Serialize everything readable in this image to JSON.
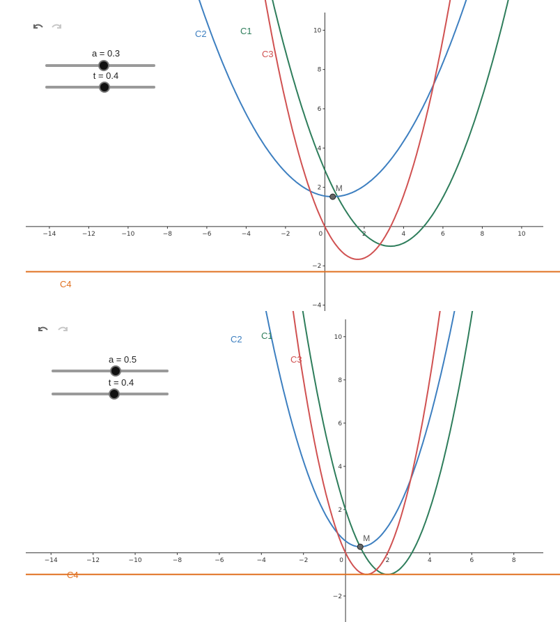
{
  "views": [
    {
      "toolbar": {
        "undo_icon": "undo-icon",
        "redo_icon": "redo-icon"
      },
      "sliders": [
        {
          "label": "a = 0.3",
          "value": 0.3,
          "fraction": 0.5
        },
        {
          "label": "t = 0.4",
          "value": 0.4,
          "fraction": 0.54
        }
      ],
      "curve_labels": {
        "C1": "C1",
        "C2": "C2",
        "C3": "C3",
        "C4": "C4"
      },
      "point_label": "M",
      "chart_data": {
        "type": "line",
        "xlim": [
          -15.2,
          11.1
        ],
        "ylim": [
          -4.3,
          10.9
        ],
        "x_ticks": [
          "-14",
          "-12",
          "-10",
          "-8",
          "-6",
          "-4",
          "-2",
          "0",
          "2",
          "4",
          "6",
          "8",
          "10"
        ],
        "y_ticks": [
          "-4",
          "-2",
          "2",
          "4",
          "6",
          "8",
          "10"
        ],
        "grid": false,
        "series": [
          {
            "name": "C1",
            "color": "#2e7d5b",
            "vertex": [
              3.33,
              -1.0
            ],
            "through": [
              0.4,
              2.0
            ]
          },
          {
            "name": "C2",
            "color": "#3d7fc0",
            "vertex": [
              0.4,
              1.52
            ],
            "through": [
              -6.2,
              11.0
            ]
          },
          {
            "name": "C3",
            "color": "#d05151",
            "vertex": [
              1.67,
              -1.67
            ],
            "through": [
              0,
              0
            ]
          },
          {
            "name": "C4",
            "color": "#e07020",
            "horizontal": -2.3
          }
        ],
        "point": {
          "name": "M",
          "x": 0.4,
          "y": 1.52
        }
      }
    },
    {
      "toolbar": {
        "undo_icon": "undo-icon",
        "redo_icon": "redo-icon"
      },
      "sliders": [
        {
          "label": "a = 0.5",
          "value": 0.5,
          "fraction": 0.55
        },
        {
          "label": "t = 0.4",
          "value": 0.4,
          "fraction": 0.54
        }
      ],
      "curve_labels": {
        "C1": "C1",
        "C2": "C2",
        "C3": "C3",
        "C4": "C4"
      },
      "point_label": "M",
      "chart_data": {
        "type": "line",
        "xlim": [
          -15.2,
          9.4
        ],
        "ylim": [
          -3.2,
          10.8
        ],
        "x_ticks": [
          "-14",
          "-12",
          "-10",
          "-8",
          "-6",
          "-4",
          "-2",
          "0",
          "2",
          "4",
          "6",
          "8"
        ],
        "y_ticks": [
          "-2",
          "2",
          "4",
          "6",
          "8",
          "10"
        ],
        "grid": false,
        "series": [
          {
            "name": "C1",
            "color": "#2e7d5b",
            "vertex": [
              2.0,
              -1.0
            ],
            "through": [
              0.4,
              0.92
            ]
          },
          {
            "name": "C2",
            "color": "#3d7fc0",
            "vertex": [
              0.7,
              0.28
            ],
            "through": [
              -3.7,
              10.8
            ]
          },
          {
            "name": "C3",
            "color": "#d05151",
            "vertex": [
              1.0,
              -1.0
            ],
            "through": [
              0,
              0
            ]
          },
          {
            "name": "C4",
            "color": "#e07020",
            "horizontal": -1.0
          }
        ],
        "point": {
          "name": "M",
          "x": 0.7,
          "y": 0.28
        }
      }
    }
  ]
}
